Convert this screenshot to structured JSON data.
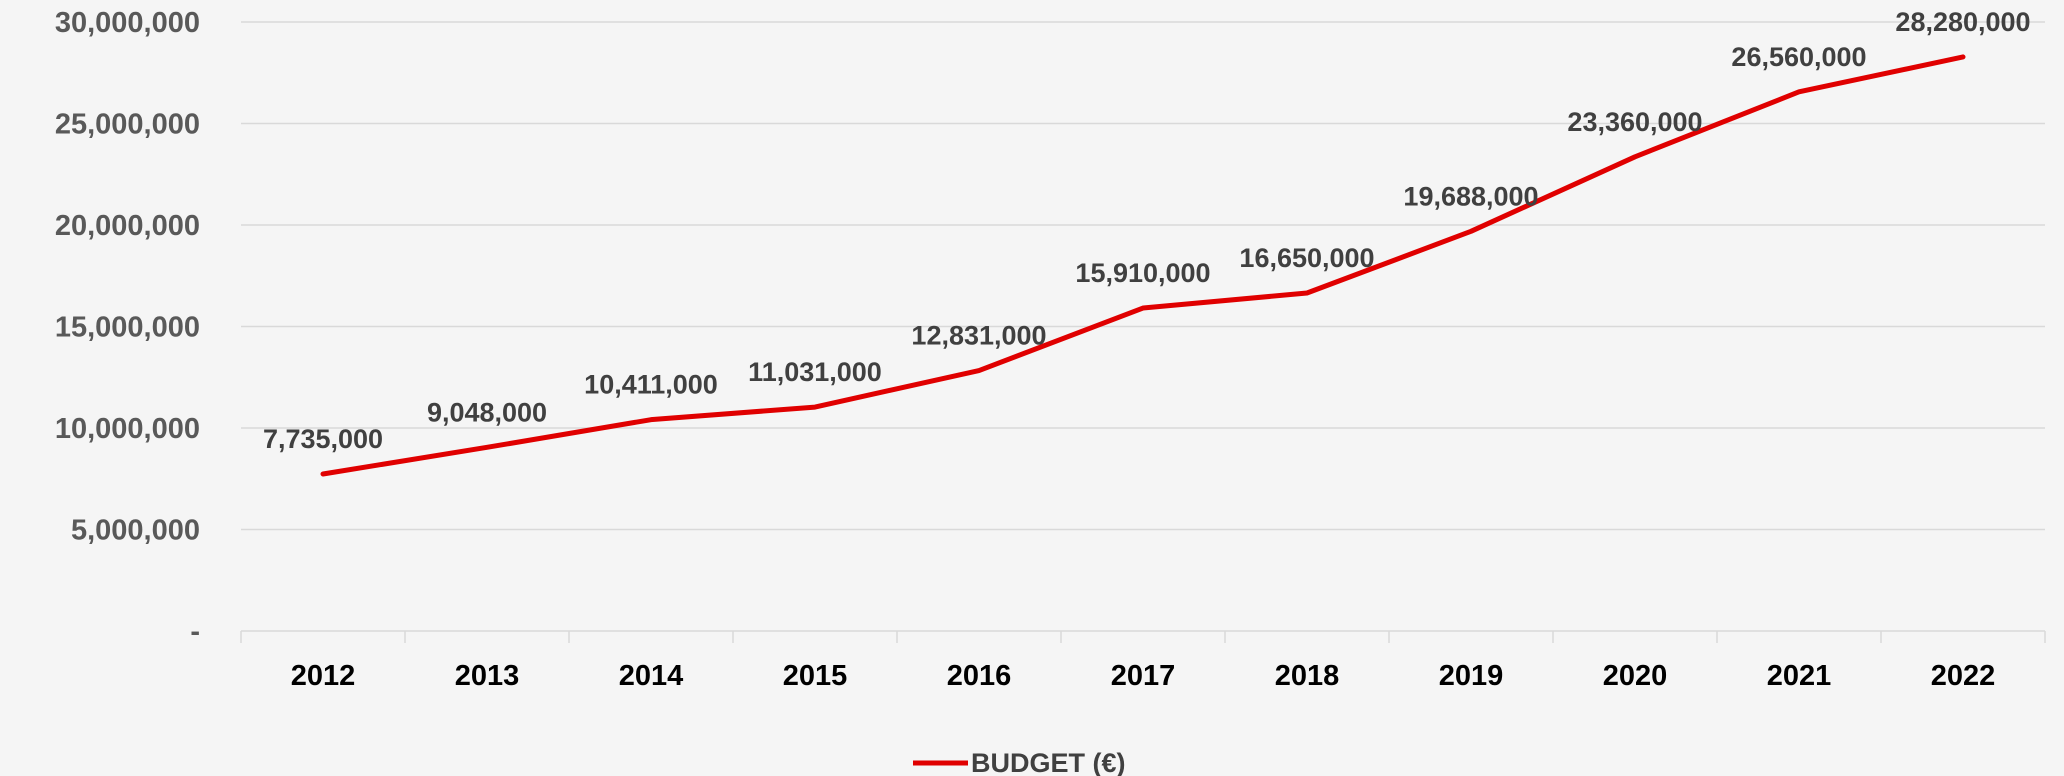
{
  "chart_data": {
    "type": "line",
    "categories": [
      "2012",
      "2013",
      "2014",
      "2015",
      "2016",
      "2017",
      "2018",
      "2019",
      "2020",
      "2021",
      "2022"
    ],
    "series": [
      {
        "name": "BUDGET (€)",
        "color": "#e00000",
        "values": [
          7735000,
          9048000,
          10411000,
          11031000,
          12831000,
          15910000,
          16650000,
          19688000,
          23360000,
          26560000,
          28280000
        ],
        "labels": [
          "7,735,000",
          "9,048,000",
          "10,411,000",
          "11,031,000",
          "12,831,000",
          "15,910,000",
          "16,650,000",
          "19,688,000",
          "23,360,000",
          "26,560,000",
          "28,280,000"
        ]
      }
    ],
    "ylim": [
      0,
      30000000
    ],
    "yticks": [
      {
        "value": 0,
        "label": "-"
      },
      {
        "value": 5000000,
        "label": "5,000,000"
      },
      {
        "value": 10000000,
        "label": "10,000,000"
      },
      {
        "value": 15000000,
        "label": "15,000,000"
      },
      {
        "value": 20000000,
        "label": "20,000,000"
      },
      {
        "value": 25000000,
        "label": "25,000,000"
      },
      {
        "value": 30000000,
        "label": "30,000,000"
      }
    ],
    "grid": true,
    "legend": "bottom-center",
    "title": "",
    "xlabel": "",
    "ylabel": ""
  }
}
